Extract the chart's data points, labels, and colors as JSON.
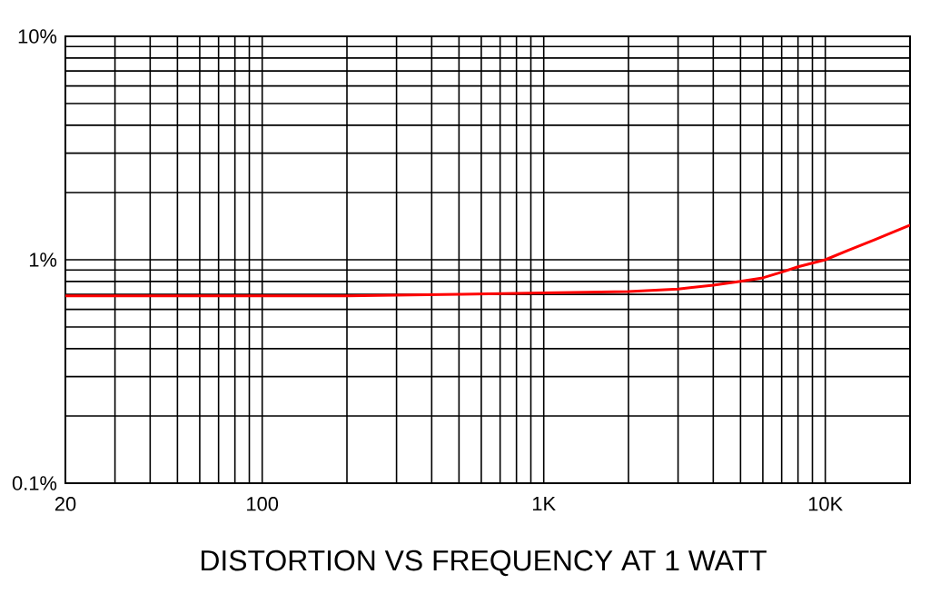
{
  "chart_data": {
    "type": "line",
    "title": "DISTORTION VS FREQUENCY AT 1 WATT",
    "x": [
      20,
      50,
      100,
      200,
      500,
      1000,
      2000,
      3000,
      4000,
      5000,
      6000,
      7000,
      8000,
      10000,
      12000,
      15000,
      20000
    ],
    "series": [
      {
        "color": "#ff0000",
        "values": [
          0.69,
          0.69,
          0.69,
          0.69,
          0.7,
          0.71,
          0.72,
          0.74,
          0.77,
          0.8,
          0.83,
          0.88,
          0.93,
          1.0,
          1.1,
          1.23,
          1.43
        ]
      }
    ],
    "log": "xy",
    "xlim": [
      20,
      20000
    ],
    "ylim": [
      0.1,
      10
    ],
    "xticks": [
      20,
      100,
      {
        "value": 1000,
        "label": "1K"
      },
      {
        "value": 10000,
        "label": "10K"
      }
    ],
    "yticks": [
      {
        "value": 0.1,
        "label": "0.1%"
      },
      {
        "value": 1,
        "label": "1%"
      },
      {
        "value": 10,
        "label": "10%"
      }
    ],
    "grid": true,
    "marker": "none",
    "line_style": "solid"
  }
}
